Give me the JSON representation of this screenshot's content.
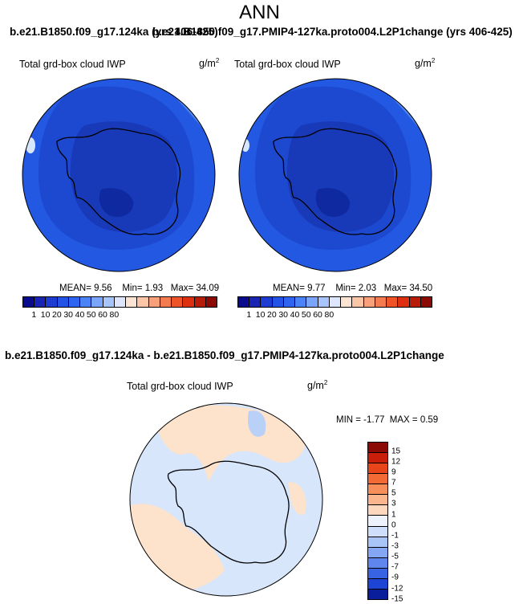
{
  "title": "ANN",
  "header_case1": "b.e21.B1850.f09_g17.124ka (yrs 406-425)",
  "header_case2": "b.e21.B1850.f09_g17.PMIP4-127ka.proto004.L2P1change (yrs 406-425)",
  "diff_title": "b.e21.B1850.f09_g17.124ka - b.e21.B1850.f09_g17.PMIP4-127ka.proto004.L2P1change",
  "variable_label": "Total grd-box cloud IWP",
  "units_base": "g/m",
  "units_exp": "2",
  "panel1": {
    "mean": "MEAN=  9.56",
    "min": "Min=  1.93",
    "max": "Max=  34.09"
  },
  "panel2": {
    "mean": "MEAN=  9.77",
    "min": "Min=  2.03",
    "max": "Max=  34.50"
  },
  "diff_stats": {
    "min": "MIN = -1.77",
    "max": "MAX =  0.59"
  },
  "colorbar_abs": {
    "colors": [
      "#0a0a8c",
      "#1a24b4",
      "#1e3cd2",
      "#2352e6",
      "#2e64f0",
      "#4b82f5",
      "#7aa5fa",
      "#a8c4fc",
      "#dde6fd",
      "#fde4d2",
      "#fbc6a6",
      "#f8a07a",
      "#f47a50",
      "#ee5428",
      "#dc3010",
      "#b81c08",
      "#8c0a05"
    ],
    "ticks": [
      "1",
      "10",
      "20",
      "30",
      "40",
      "50",
      "60",
      "80"
    ]
  },
  "colorbar_diff": {
    "colors": [
      "#8c0a05",
      "#c81e0a",
      "#e8461a",
      "#f46a34",
      "#f88e5a",
      "#fbb68e",
      "#fdd8be",
      "#eef2fc",
      "#cfdffb",
      "#a9c4f7",
      "#85a6f2",
      "#5e86ec",
      "#3864e4",
      "#1e44d6",
      "#0a1e9c"
    ],
    "ticks": [
      "15",
      "12",
      "9",
      "7",
      "5",
      "3",
      "1",
      "0",
      "-1",
      "-3",
      "-5",
      "-7",
      "-9",
      "-12",
      "-15"
    ]
  },
  "map_colors": {
    "ocean_outer": "#2358e3",
    "mid": "#1d48d0",
    "inner": "#183ab8",
    "deep": "#0f2aa0",
    "light": "#4e86ee",
    "ice": "#d8e6fc",
    "diff_pos": "#fde2cc",
    "diff_neg": "#d7e6fb",
    "diff_neg2": "#b9d0f7"
  }
}
